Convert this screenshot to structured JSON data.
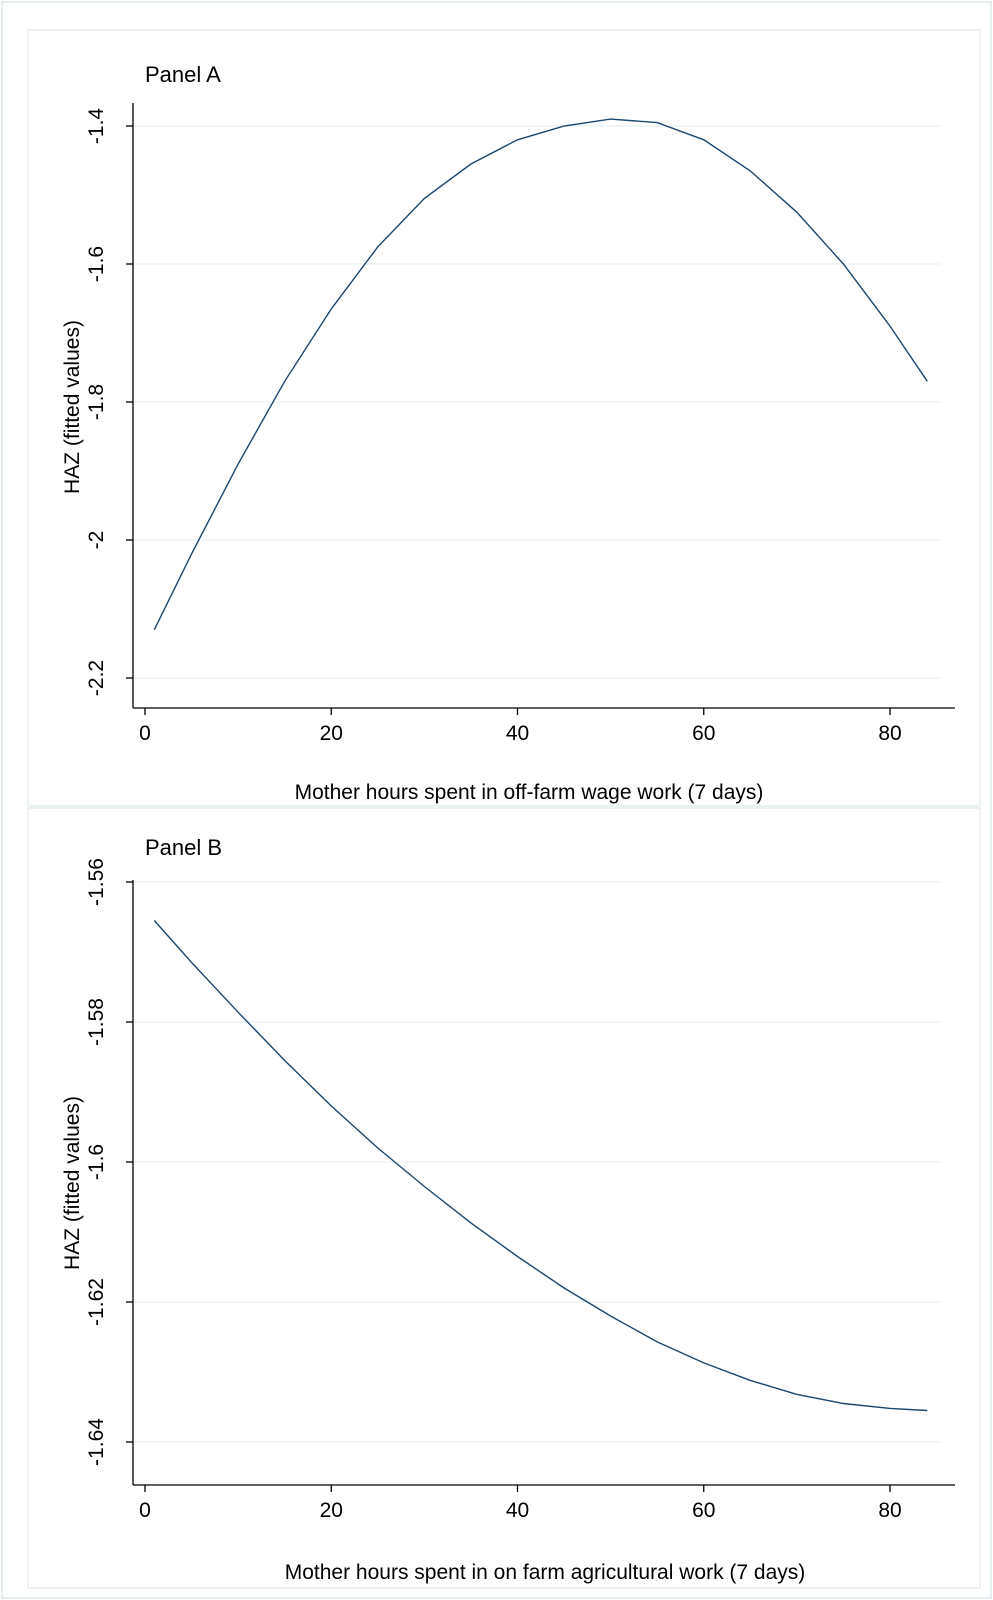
{
  "chart_data": [
    {
      "type": "line",
      "title": "Panel A",
      "xlabel": "Mother hours spent in off-farm wage work (7 days)",
      "ylabel": "HAZ (fitted values)",
      "xlim": [
        0,
        85
      ],
      "ylim": [
        -2.2,
        -1.4
      ],
      "xticks": [
        0,
        20,
        40,
        60,
        80
      ],
      "yticks": [
        -2.2,
        -2,
        -1.8,
        -1.6,
        -1.4
      ],
      "xtick_labels": [
        "0",
        "20",
        "40",
        "60",
        "80"
      ],
      "ytick_labels": [
        "-2.2",
        "-2",
        "-1.8",
        "-1.6",
        "-1.4"
      ],
      "grid": true,
      "line_color": "#1a476f",
      "series": [
        {
          "x": [
            1,
            5,
            10,
            15,
            20,
            25,
            30,
            35,
            40,
            45,
            50,
            55,
            60,
            65,
            70,
            75,
            80,
            84
          ],
          "y": [
            -2.13,
            -2.02,
            -1.89,
            -1.77,
            -1.665,
            -1.575,
            -1.505,
            -1.455,
            -1.42,
            -1.4,
            -1.39,
            -1.395,
            -1.42,
            -1.465,
            -1.525,
            -1.6,
            -1.69,
            -1.77
          ]
        }
      ]
    },
    {
      "type": "line",
      "title": "Panel B",
      "xlabel": "Mother hours spent in on farm agricultural work (7 days)",
      "ylabel": "HAZ (fitted values)",
      "xlim": [
        0,
        85
      ],
      "ylim": [
        -1.64,
        -1.56
      ],
      "xticks": [
        0,
        20,
        40,
        60,
        80
      ],
      "yticks": [
        -1.64,
        -1.62,
        -1.6,
        -1.58,
        -1.56
      ],
      "xtick_labels": [
        "0",
        "20",
        "40",
        "60",
        "80"
      ],
      "ytick_labels": [
        "-1.64",
        "-1.62",
        "-1.6",
        "-1.58",
        "-1.56"
      ],
      "grid": true,
      "line_color": "#1a476f",
      "series": [
        {
          "x": [
            1,
            5,
            10,
            15,
            20,
            25,
            30,
            35,
            40,
            45,
            50,
            55,
            60,
            65,
            70,
            75,
            80,
            84
          ],
          "y": [
            -1.5655,
            -1.5715,
            -1.5786,
            -1.5855,
            -1.592,
            -1.598,
            -1.6035,
            -1.6087,
            -1.6135,
            -1.618,
            -1.622,
            -1.6257,
            -1.6287,
            -1.6312,
            -1.6332,
            -1.6345,
            -1.6352,
            -1.6355
          ]
        }
      ]
    }
  ]
}
